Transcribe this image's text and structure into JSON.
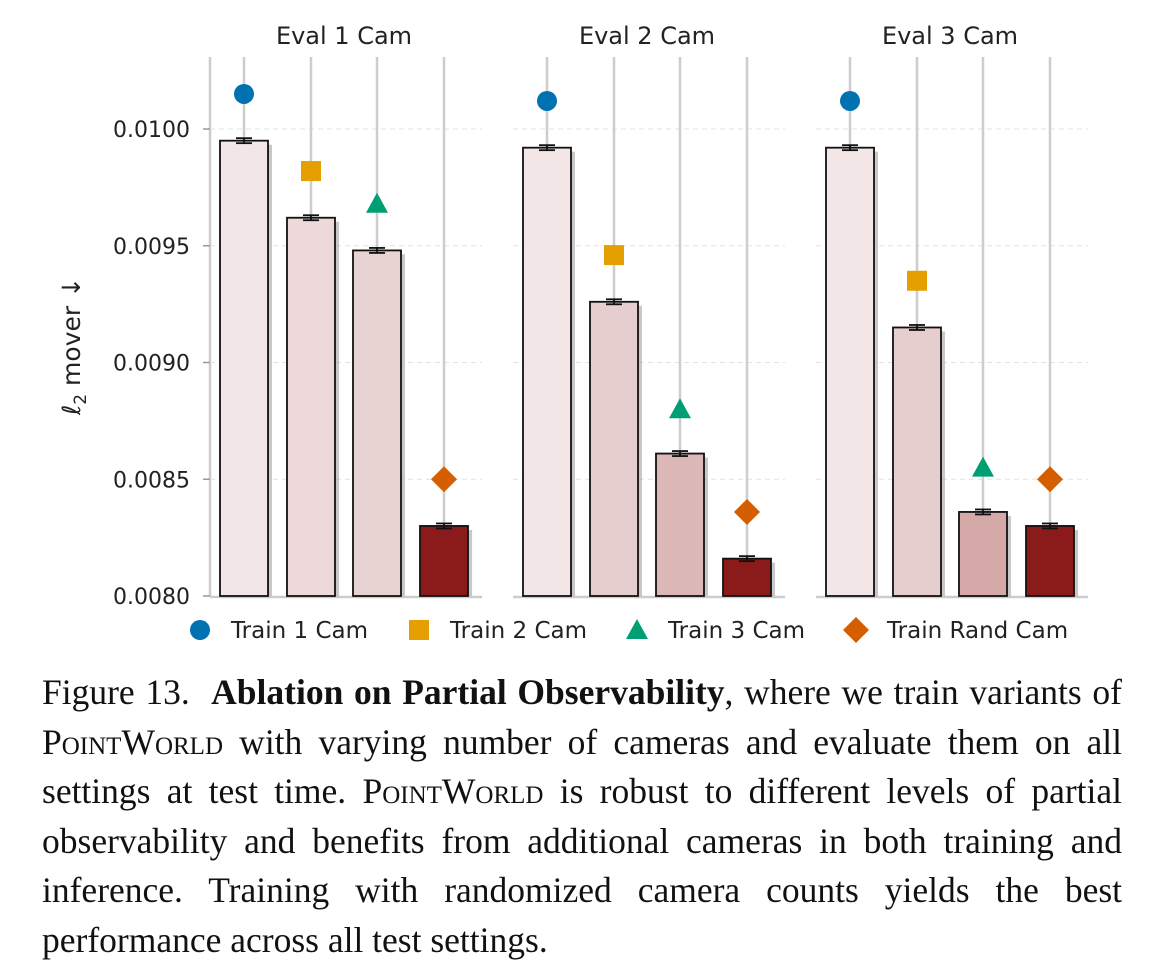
{
  "chart_data": {
    "type": "bar",
    "ylabel_var": "ℓ",
    "ylabel_sub": "2",
    "ylabel_rest": " mover ↓",
    "ylim": [
      0.008,
      0.01035
    ],
    "yticks": [
      0.008,
      0.0085,
      0.009,
      0.0095,
      0.01
    ],
    "ytick_labels": [
      "0.0080",
      "0.0085",
      "0.0090",
      "0.0095",
      "0.0100"
    ],
    "grid": "y-dashed",
    "legend_position": "bottom",
    "series": [
      {
        "name": "Train 1 Cam",
        "marker": "circle",
        "color": "#0072b2"
      },
      {
        "name": "Train 2 Cam",
        "marker": "square",
        "color": "#e69f00"
      },
      {
        "name": "Train 3 Cam",
        "marker": "triangle",
        "color": "#009e73"
      },
      {
        "name": "Train Rand Cam",
        "marker": "diamond",
        "color": "#d55e00"
      }
    ],
    "panels": [
      {
        "title": "Eval 1 Cam",
        "bar_values": [
          0.00995,
          0.00962,
          0.00948,
          0.0083
        ],
        "bar_fills": [
          "#f3e6e6",
          "#edd9d9",
          "#e8d2d2",
          "#8b1a1a"
        ],
        "marker_values": [
          0.01015,
          0.00982,
          0.00968,
          0.0085
        ]
      },
      {
        "title": "Eval 2 Cam",
        "bar_values": [
          0.00992,
          0.00926,
          0.00861,
          0.00816
        ],
        "bar_fills": [
          "#f3e6e6",
          "#e6cece",
          "#dcb7b7",
          "#8b1a1a"
        ],
        "marker_values": [
          0.01012,
          0.00946,
          0.0088,
          0.00836
        ]
      },
      {
        "title": "Eval 3 Cam",
        "bar_values": [
          0.00992,
          0.00915,
          0.00836,
          0.0083
        ],
        "bar_fills": [
          "#f3e6e6",
          "#e6cece",
          "#d6a9a9",
          "#8b1a1a"
        ],
        "marker_values": [
          0.01012,
          0.00935,
          0.00855,
          0.0085
        ]
      }
    ]
  },
  "caption": {
    "label": "Figure 13.",
    "bold_title": "Ablation on Partial Observability",
    "text_1": ", where we train variants of ",
    "name_1": "PointWorld",
    "text_2": " with varying number of cameras and evaluate them on all settings at test time. ",
    "name_2": "PointWorld",
    "text_3": " is robust to different levels of partial observability and benefits from additional cameras in both training and inference. Training with randomized camera counts yields the best performance across all test settings."
  }
}
